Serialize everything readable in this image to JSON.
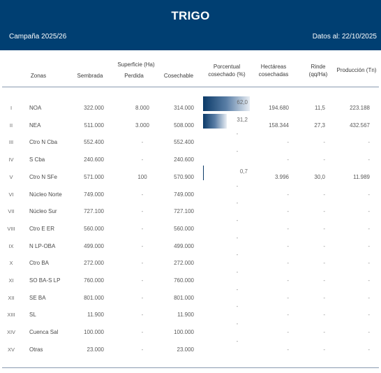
{
  "header": {
    "title": "TRIGO",
    "campaign": "Campaña 2025/26",
    "date_label": "Datos al: 22/10/2025"
  },
  "columns": {
    "zonas": "Zonas",
    "superficie_group": "Superficie (Ha)",
    "sembrada": "Sembrada",
    "perdida": "Perdida",
    "cosechable": "Cosechable",
    "porcentual_1": "Porcentual",
    "porcentual_2": "cosechado (%)",
    "hectareas_1": "Hectáreas",
    "hectareas_2": "cosechadas",
    "rinde_1": "Rinde",
    "rinde_2": "(qq/Ha)",
    "produccion": "Producción (Tn)"
  },
  "rows": [
    {
      "num": "I",
      "zona": "NOA",
      "sembrada": "322.000",
      "perdida": "8.000",
      "cosechable": "314.000",
      "pct": "62,0",
      "pct_value": 62.0,
      "hectareas": "194.680",
      "rinde": "11,5",
      "produccion": "223.188"
    },
    {
      "num": "II",
      "zona": "NEA",
      "sembrada": "511.000",
      "perdida": "3.000",
      "cosechable": "508.000",
      "pct": "31,2",
      "pct_value": 31.2,
      "hectareas": "158.344",
      "rinde": "27,3",
      "produccion": "432.567"
    },
    {
      "num": "III",
      "zona": "Ctro N Cba",
      "sembrada": "552.400",
      "perdida": "-",
      "cosechable": "552.400",
      "pct": "-",
      "pct_value": 0,
      "hectareas": "-",
      "rinde": "-",
      "produccion": "-"
    },
    {
      "num": "IV",
      "zona": "S Cba",
      "sembrada": "240.600",
      "perdida": "-",
      "cosechable": "240.600",
      "pct": "-",
      "pct_value": 0,
      "hectareas": "-",
      "rinde": "-",
      "produccion": "-"
    },
    {
      "num": "V",
      "zona": "Ctro N SFe",
      "sembrada": "571.000",
      "perdida": "100",
      "cosechable": "570.900",
      "pct": "0,7",
      "pct_value": 0.7,
      "hectareas": "3.996",
      "rinde": "30,0",
      "produccion": "11.989"
    },
    {
      "num": "VI",
      "zona": "Núcleo Norte",
      "sembrada": "749.000",
      "perdida": "-",
      "cosechable": "749.000",
      "pct": "-",
      "pct_value": 0,
      "hectareas": "-",
      "rinde": "-",
      "produccion": "-"
    },
    {
      "num": "VII",
      "zona": "Núcleo Sur",
      "sembrada": "727.100",
      "perdida": "-",
      "cosechable": "727.100",
      "pct": "-",
      "pct_value": 0,
      "hectareas": "-",
      "rinde": "-",
      "produccion": "-"
    },
    {
      "num": "VIII",
      "zona": "Ctro E ER",
      "sembrada": "560.000",
      "perdida": "-",
      "cosechable": "560.000",
      "pct": "-",
      "pct_value": 0,
      "hectareas": "-",
      "rinde": "-",
      "produccion": "-"
    },
    {
      "num": "IX",
      "zona": "N LP-OBA",
      "sembrada": "499.000",
      "perdida": "-",
      "cosechable": "499.000",
      "pct": "-",
      "pct_value": 0,
      "hectareas": "-",
      "rinde": "-",
      "produccion": "-"
    },
    {
      "num": "X",
      "zona": "Ctro BA",
      "sembrada": "272.000",
      "perdida": "-",
      "cosechable": "272.000",
      "pct": "-",
      "pct_value": 0,
      "hectareas": "-",
      "rinde": "-",
      "produccion": "-"
    },
    {
      "num": "XI",
      "zona": "SO BA-S LP",
      "sembrada": "760.000",
      "perdida": "-",
      "cosechable": "760.000",
      "pct": "-",
      "pct_value": 0,
      "hectareas": "-",
      "rinde": "-",
      "produccion": "-"
    },
    {
      "num": "XII",
      "zona": "SE BA",
      "sembrada": "801.000",
      "perdida": "-",
      "cosechable": "801.000",
      "pct": "-",
      "pct_value": 0,
      "hectareas": "-",
      "rinde": "-",
      "produccion": "-"
    },
    {
      "num": "XIII",
      "zona": "SL",
      "sembrada": "11.900",
      "perdida": "-",
      "cosechable": "11.900",
      "pct": "-",
      "pct_value": 0,
      "hectareas": "-",
      "rinde": "-",
      "produccion": "-"
    },
    {
      "num": "XIV",
      "zona": "Cuenca Sal",
      "sembrada": "100.000",
      "perdida": "-",
      "cosechable": "100.000",
      "pct": "-",
      "pct_value": 0,
      "hectareas": "-",
      "rinde": "-",
      "produccion": "-"
    },
    {
      "num": "XV",
      "zona": "Otras",
      "sembrada": "23.000",
      "perdida": "-",
      "cosechable": "23.000",
      "pct": "-",
      "pct_value": 0,
      "hectareas": "-",
      "rinde": "-",
      "produccion": "-"
    }
  ]
}
